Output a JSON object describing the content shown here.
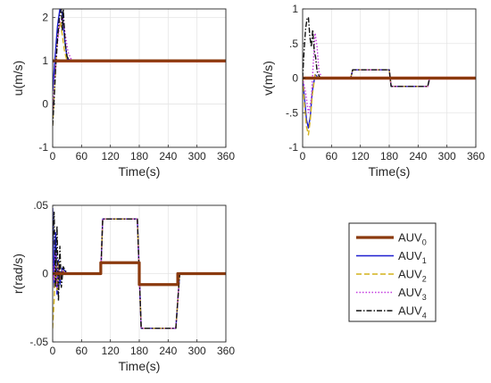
{
  "colors": {
    "AUV0": "#8B3A0E",
    "AUV1": "#1F1FD0",
    "AUV2": "#D4B21B",
    "AUV3": "#C43BE0",
    "AUV4": "#111111",
    "reference": "#FF0000",
    "axis": "#262626",
    "grid": "#E5E5E5"
  },
  "legend": {
    "placement": "bottom-right",
    "entries": [
      {
        "key": "AUV0",
        "base": "AUV",
        "sub": "0",
        "style": "solid-thick"
      },
      {
        "key": "AUV1",
        "base": "AUV",
        "sub": "1",
        "style": "solid"
      },
      {
        "key": "AUV2",
        "base": "AUV",
        "sub": "2",
        "style": "dashed"
      },
      {
        "key": "AUV3",
        "base": "AUV",
        "sub": "3",
        "style": "dotted"
      },
      {
        "key": "AUV4",
        "base": "AUV",
        "sub": "4",
        "style": "dash-dot"
      }
    ]
  },
  "chart_data": [
    {
      "type": "line",
      "title": "",
      "xlabel": "Time(s)",
      "ylabel": "u(m/s)",
      "xlim": [
        0,
        360
      ],
      "ylim": [
        -1,
        2.2
      ],
      "xticks": [
        0,
        60,
        120,
        180,
        240,
        300,
        360
      ],
      "yticks": [
        -1,
        0,
        1,
        2
      ],
      "grid": true,
      "reference": {
        "x": [
          0,
          360
        ],
        "y": [
          1,
          1
        ]
      },
      "series": [
        {
          "key": "AUV0",
          "x": [
            0,
            360
          ],
          "y": [
            1,
            1
          ]
        },
        {
          "key": "AUV1",
          "x": [
            0,
            5,
            10,
            15,
            20,
            25,
            30,
            40,
            360
          ],
          "y": [
            0.3,
            1.1,
            1.8,
            2.2,
            2.1,
            1.5,
            1.05,
            1.0,
            1.0
          ]
        },
        {
          "key": "AUV2",
          "x": [
            0,
            4,
            8,
            12,
            16,
            20,
            25,
            30,
            40,
            360
          ],
          "y": [
            -0.5,
            0.4,
            1.2,
            1.7,
            1.9,
            1.6,
            1.2,
            1.0,
            1.0,
            1.0
          ]
        },
        {
          "key": "AUV3",
          "x": [
            0,
            5,
            10,
            15,
            20,
            25,
            32,
            40,
            360
          ],
          "y": [
            -0.2,
            0.7,
            1.4,
            1.9,
            2.0,
            1.7,
            1.2,
            1.0,
            1.0
          ]
        },
        {
          "key": "AUV4",
          "x": [
            0,
            3,
            6,
            10,
            14,
            18,
            20,
            22,
            26,
            30,
            35,
            40,
            360
          ],
          "y": [
            -0.5,
            0.1,
            0.8,
            1.5,
            2.0,
            2.2,
            1.7,
            2.2,
            1.4,
            1.1,
            1.0,
            1.0,
            1.0
          ]
        }
      ]
    },
    {
      "type": "line",
      "title": "",
      "xlabel": "Time(s)",
      "ylabel": "v(m/s)",
      "xlim": [
        0,
        360
      ],
      "ylim": [
        -1,
        1
      ],
      "xticks": [
        0,
        60,
        120,
        180,
        240,
        300,
        360
      ],
      "yticks": [
        -1,
        -0.5,
        0,
        0.5,
        1
      ],
      "grid": true,
      "reference": {
        "x": [
          0,
          360
        ],
        "y": [
          0,
          0
        ]
      },
      "series": [
        {
          "key": "AUV0",
          "x": [
            0,
            360
          ],
          "y": [
            0,
            0
          ]
        },
        {
          "key": "AUV1",
          "x": [
            0,
            4,
            8,
            12,
            16,
            20,
            26,
            35,
            100,
            104,
            180,
            184,
            260,
            264,
            360
          ],
          "y": [
            0,
            -0.3,
            -0.6,
            -0.72,
            -0.55,
            -0.2,
            0.05,
            0,
            0,
            0.12,
            0.12,
            -0.12,
            -0.12,
            0,
            0
          ]
        },
        {
          "key": "AUV2",
          "x": [
            0,
            4,
            8,
            12,
            16,
            20,
            26,
            35,
            100,
            104,
            180,
            184,
            260,
            264,
            360
          ],
          "y": [
            0,
            -0.4,
            -0.7,
            -0.82,
            -0.6,
            -0.25,
            0.05,
            0,
            0,
            0.12,
            0.12,
            -0.12,
            -0.12,
            0,
            0
          ]
        },
        {
          "key": "AUV3",
          "x": [
            0,
            6,
            12,
            18,
            22,
            26,
            30,
            34,
            40,
            100,
            104,
            180,
            184,
            260,
            264,
            360
          ],
          "y": [
            0,
            -0.2,
            -0.5,
            -0.3,
            0.2,
            0.65,
            0.45,
            0.1,
            0,
            0,
            0.12,
            0.12,
            -0.12,
            -0.12,
            0,
            0
          ]
        },
        {
          "key": "AUV4",
          "x": [
            0,
            3,
            6,
            9,
            12,
            15,
            18,
            21,
            24,
            27,
            30,
            35,
            40,
            100,
            104,
            180,
            184,
            260,
            264,
            360
          ],
          "y": [
            0,
            0.4,
            0.7,
            0.85,
            0.88,
            0.6,
            0.45,
            0.7,
            0.4,
            0.3,
            0.1,
            0.02,
            0,
            0,
            0.12,
            0.12,
            -0.12,
            -0.12,
            0,
            0
          ]
        }
      ]
    },
    {
      "type": "line",
      "title": "",
      "xlabel": "Time(s)",
      "ylabel": "r(rad/s)",
      "xlim": [
        0,
        360
      ],
      "ylim": [
        -0.05,
        0.05
      ],
      "xticks": [
        0,
        60,
        120,
        180,
        240,
        300,
        360
      ],
      "yticks": [
        -0.05,
        0,
        0.05
      ],
      "grid": true,
      "reference": null,
      "series": [
        {
          "key": "AUV0",
          "x": [
            0,
            100,
            100,
            180,
            180,
            260,
            260,
            360
          ],
          "y": [
            0,
            0,
            0.008,
            0.008,
            -0.008,
            -0.008,
            0,
            0
          ]
        },
        {
          "key": "AUV1",
          "x": [
            0,
            3,
            6,
            9,
            12,
            15,
            20,
            30,
            100,
            104,
            176,
            184,
            256,
            264,
            360
          ],
          "y": [
            0.048,
            -0.01,
            0.03,
            -0.015,
            0.01,
            -0.008,
            0.004,
            0,
            0,
            0.04,
            0.04,
            -0.04,
            -0.04,
            0,
            0
          ]
        },
        {
          "key": "AUV2",
          "x": [
            0,
            3,
            6,
            9,
            12,
            15,
            20,
            30,
            100,
            104,
            176,
            184,
            256,
            264,
            360
          ],
          "y": [
            -0.04,
            -0.02,
            0.01,
            -0.012,
            0.008,
            -0.005,
            0.002,
            0,
            0,
            0.04,
            0.04,
            -0.04,
            -0.04,
            0,
            0
          ]
        },
        {
          "key": "AUV3",
          "x": [
            0,
            3,
            6,
            9,
            12,
            15,
            20,
            30,
            100,
            104,
            176,
            184,
            256,
            264,
            360
          ],
          "y": [
            0.01,
            -0.005,
            0.015,
            -0.01,
            0.006,
            -0.004,
            0.002,
            0,
            0,
            0.04,
            0.04,
            -0.04,
            -0.04,
            0,
            0
          ]
        },
        {
          "key": "AUV4",
          "x": [
            0,
            3,
            6,
            9,
            12,
            15,
            18,
            22,
            30,
            100,
            104,
            176,
            184,
            256,
            264,
            360
          ],
          "y": [
            0.02,
            0.045,
            -0.01,
            0.035,
            -0.02,
            0.02,
            -0.01,
            0.005,
            0,
            0,
            0.04,
            0.04,
            -0.04,
            -0.04,
            0,
            0
          ]
        }
      ]
    }
  ]
}
